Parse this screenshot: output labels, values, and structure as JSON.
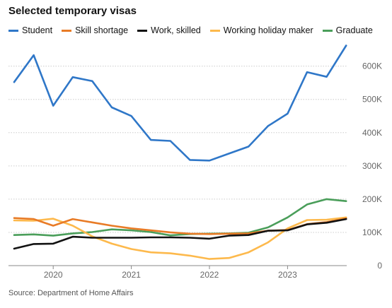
{
  "chart_data": {
    "type": "line",
    "title": "Selected temporary visas",
    "xlabel": "",
    "ylabel": "",
    "x": [
      "2019-07",
      "2019-10",
      "2020-01",
      "2020-04",
      "2020-07",
      "2020-10",
      "2021-01",
      "2021-04",
      "2021-07",
      "2021-10",
      "2022-01",
      "2022-04",
      "2022-07",
      "2022-10",
      "2023-01",
      "2023-04",
      "2023-07",
      "2023-10"
    ],
    "x_ticks": [
      "2020",
      "2021",
      "2022",
      "2023"
    ],
    "ylim": [
      0,
      680000
    ],
    "y_ticks": [
      0,
      100000,
      200000,
      300000,
      400000,
      500000,
      600000
    ],
    "y_tick_labels": [
      "0",
      "100K",
      "200K",
      "300K",
      "400K",
      "500K",
      "600K"
    ],
    "grid": "horizontal",
    "legend_position": "top",
    "series": [
      {
        "name": "Student",
        "color": "#2f77c8",
        "values": [
          552000,
          633000,
          481000,
          567000,
          555000,
          476000,
          450000,
          378000,
          375000,
          318000,
          316000,
          337000,
          358000,
          420000,
          457000,
          582000,
          568000,
          662000
        ]
      },
      {
        "name": "Skill shortage",
        "color": "#e87b26",
        "values": [
          143000,
          140000,
          120000,
          140000,
          130000,
          120000,
          112000,
          106000,
          100000,
          96000,
          95000,
          96000,
          97000,
          105000,
          107000,
          125000,
          131000,
          142000
        ]
      },
      {
        "name": "Work, skilled",
        "color": "#121212",
        "values": [
          51000,
          65000,
          66000,
          87000,
          84000,
          84000,
          84000,
          85000,
          85000,
          84000,
          81000,
          90000,
          92000,
          105000,
          106000,
          124000,
          129000,
          140000
        ]
      },
      {
        "name": "Working holiday maker",
        "color": "#fdb94c",
        "values": [
          136000,
          135000,
          141000,
          120000,
          88000,
          66000,
          50000,
          40000,
          37000,
          30000,
          20000,
          23000,
          40000,
          70000,
          112000,
          137000,
          138000,
          145000
        ]
      },
      {
        "name": "Graduate",
        "color": "#4a9e5a",
        "values": [
          92000,
          94000,
          90000,
          97000,
          101000,
          109000,
          106000,
          101000,
          91000,
          95000,
          96000,
          97000,
          99000,
          115000,
          145000,
          184000,
          200000,
          194000
        ]
      }
    ]
  },
  "source": "Source: Department of Home Affairs"
}
